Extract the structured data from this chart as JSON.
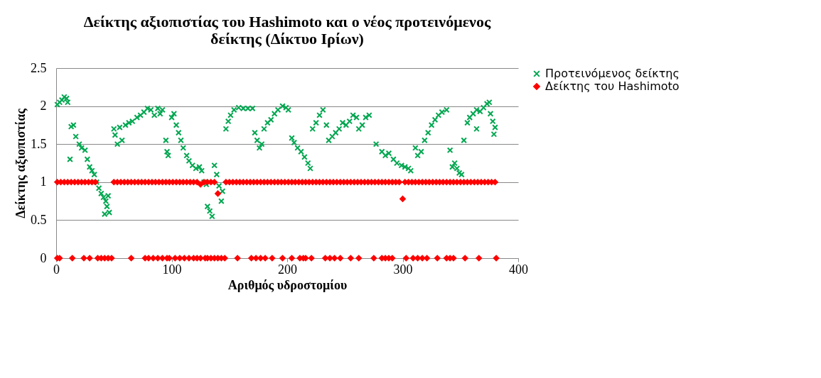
{
  "chart_data": {
    "type": "scatter",
    "title": "Δείκτης αξιοπιστίας του Hashimoto και ο νέος προτεινόμενος δείκτης (Δίκτυο Ιρίων)",
    "xlabel": "Αριθμός υδροστομίου",
    "ylabel": "Δείκτης αξιοπιστίας",
    "xlim": [
      0,
      400
    ],
    "xticks": [
      0,
      100,
      200,
      300,
      400
    ],
    "ylim": [
      0,
      2.5
    ],
    "yticks": [
      0,
      0.5,
      1,
      1.5,
      2,
      2.5
    ],
    "grid": "y",
    "legend": "right",
    "series": [
      {
        "name": "Προτεινόμενος δείκτης",
        "color": "#00a650",
        "marker": "cross",
        "x": [
          1,
          3,
          5,
          7,
          9,
          10,
          12,
          13,
          15,
          17,
          20,
          22,
          25,
          27,
          29,
          31,
          33,
          35,
          37,
          39,
          41,
          42,
          43,
          44,
          45,
          46,
          50,
          51,
          53,
          55,
          57,
          60,
          63,
          66,
          70,
          73,
          76,
          79,
          82,
          85,
          88,
          90,
          92,
          95,
          96,
          97,
          100,
          102,
          104,
          106,
          108,
          110,
          113,
          115,
          118,
          121,
          124,
          126,
          128,
          130,
          131,
          133,
          135,
          137,
          139,
          141,
          143,
          144,
          147,
          149,
          151,
          154,
          158,
          162,
          166,
          170,
          172,
          174,
          176,
          178,
          180,
          183,
          186,
          189,
          192,
          196,
          199,
          201,
          204,
          206,
          209,
          212,
          215,
          218,
          220,
          222,
          225,
          228,
          231,
          234,
          236,
          239,
          242,
          245,
          248,
          251,
          254,
          257,
          260,
          262,
          265,
          268,
          271,
          277,
          282,
          285,
          288,
          292,
          295,
          299,
          302,
          305,
          307,
          311,
          313,
          316,
          319,
          322,
          325,
          328,
          331,
          334,
          338,
          341,
          343,
          345,
          347,
          349,
          351,
          353,
          356,
          358,
          361,
          364,
          364,
          367,
          370,
          373,
          375,
          376,
          378,
          379,
          380
        ],
        "values": [
          2.02,
          2.05,
          2.08,
          2.12,
          2.1,
          2.05,
          1.3,
          1.73,
          1.75,
          1.6,
          1.5,
          1.45,
          1.42,
          1.3,
          1.2,
          1.15,
          1.1,
          1.0,
          0.92,
          0.85,
          0.8,
          0.58,
          0.75,
          0.68,
          0.82,
          0.6,
          1.7,
          1.62,
          1.5,
          1.72,
          1.55,
          1.75,
          1.78,
          1.8,
          1.85,
          1.88,
          1.92,
          1.97,
          1.95,
          1.88,
          1.97,
          1.9,
          1.95,
          1.55,
          1.4,
          1.35,
          1.85,
          1.9,
          1.75,
          1.65,
          1.55,
          1.45,
          1.35,
          1.28,
          1.22,
          1.18,
          1.2,
          1.15,
          1.0,
          0.97,
          0.68,
          0.62,
          0.55,
          1.22,
          1.1,
          0.95,
          0.75,
          0.88,
          1.7,
          1.8,
          1.88,
          1.95,
          1.98,
          1.97,
          1.97,
          1.97,
          1.65,
          1.55,
          1.45,
          1.5,
          1.7,
          1.78,
          1.82,
          1.9,
          1.95,
          2.0,
          1.98,
          1.95,
          1.58,
          1.52,
          1.45,
          1.4,
          1.33,
          1.25,
          1.18,
          1.7,
          1.78,
          1.88,
          1.95,
          1.75,
          1.55,
          1.6,
          1.65,
          1.7,
          1.78,
          1.75,
          1.8,
          1.88,
          1.85,
          1.7,
          1.75,
          1.85,
          1.88,
          1.5,
          1.4,
          1.35,
          1.38,
          1.3,
          1.25,
          1.22,
          1.2,
          1.18,
          1.15,
          1.45,
          1.35,
          1.4,
          1.55,
          1.65,
          1.75,
          1.82,
          1.88,
          1.92,
          1.95,
          1.42,
          1.2,
          1.25,
          1.18,
          1.12,
          1.1,
          1.55,
          1.78,
          1.85,
          1.9,
          1.95,
          1.7,
          1.93,
          1.98,
          2.03,
          2.05,
          1.9,
          1.8,
          1.63,
          1.72
        ]
      },
      {
        "name": "Δείκτης του Hashimoto",
        "color": "#ff0000",
        "marker": "diamond",
        "x": [
          1,
          4,
          7,
          10,
          13,
          16,
          19,
          22,
          25,
          28,
          31,
          34,
          50,
          53,
          56,
          59,
          62,
          65,
          68,
          71,
          74,
          77,
          80,
          83,
          86,
          89,
          92,
          95,
          98,
          101,
          104,
          107,
          110,
          113,
          116,
          119,
          122,
          125,
          128,
          131,
          134,
          137,
          140,
          147,
          150,
          153,
          156,
          159,
          162,
          165,
          168,
          171,
          174,
          177,
          180,
          183,
          186,
          189,
          192,
          195,
          198,
          201,
          204,
          207,
          210,
          213,
          216,
          219,
          222,
          225,
          228,
          231,
          234,
          237,
          240,
          243,
          246,
          249,
          252,
          255,
          258,
          261,
          264,
          267,
          270,
          273,
          276,
          279,
          282,
          285,
          288,
          291,
          294,
          297,
          300,
          302,
          305,
          308,
          311,
          314,
          317,
          320,
          323,
          326,
          329,
          332,
          335,
          338,
          341,
          344,
          347,
          350,
          353,
          356,
          359,
          362,
          365,
          368,
          371,
          374,
          377,
          380,
          1,
          3,
          14,
          24,
          29,
          36,
          39,
          42,
          45,
          48,
          65,
          77,
          80,
          84,
          88,
          92,
          96,
          98,
          103,
          107,
          111,
          115,
          119,
          122,
          125,
          129,
          131,
          134,
          137,
          140,
          143,
          146,
          157,
          169,
          173,
          177,
          181,
          187,
          196,
          204,
          211,
          214,
          216,
          221,
          233,
          237,
          241,
          246,
          255,
          262,
          275,
          282,
          285,
          288,
          291,
          303,
          309,
          313,
          317,
          321,
          330,
          338,
          341,
          344,
          354,
          366,
          381
        ],
        "values": [
          1,
          1,
          1,
          1,
          1,
          1,
          1,
          1,
          1,
          1,
          1,
          1,
          1,
          1,
          1,
          1,
          1,
          1,
          1,
          1,
          1,
          1,
          1,
          1,
          1,
          1,
          1,
          1,
          1,
          1,
          1,
          1,
          1,
          1,
          1,
          1,
          1,
          0.97,
          1,
          1,
          1,
          1,
          0.85,
          1,
          1,
          1,
          1,
          1,
          1,
          1,
          1,
          1,
          1,
          1,
          1,
          1,
          1,
          1,
          1,
          1,
          1,
          1,
          1,
          1,
          1,
          1,
          1,
          1,
          1,
          1,
          1,
          1,
          1,
          1,
          1,
          1,
          1,
          1,
          1,
          1,
          1,
          1,
          1,
          1,
          1,
          1,
          1,
          1,
          1,
          1,
          1,
          1,
          1,
          1,
          0.78,
          1,
          1,
          1,
          1,
          1,
          1,
          1,
          1,
          1,
          1,
          1,
          1,
          1,
          1,
          1,
          1,
          1,
          1,
          1,
          1,
          1,
          1,
          1,
          1,
          1,
          1,
          1,
          0,
          0,
          0,
          0,
          0,
          0,
          0,
          0,
          0,
          0,
          0,
          0,
          0,
          0,
          0,
          0,
          0,
          0,
          0,
          0,
          0,
          0,
          0,
          0,
          0,
          0,
          0,
          0,
          0,
          0,
          0,
          0,
          0,
          0,
          0,
          0,
          0,
          0,
          0,
          0,
          0,
          0,
          0,
          0,
          0,
          0,
          0,
          0,
          0,
          0,
          0,
          0,
          0,
          0,
          0,
          0,
          0,
          0,
          0,
          0,
          0,
          0,
          0,
          0,
          0,
          0,
          0
        ]
      }
    ]
  }
}
